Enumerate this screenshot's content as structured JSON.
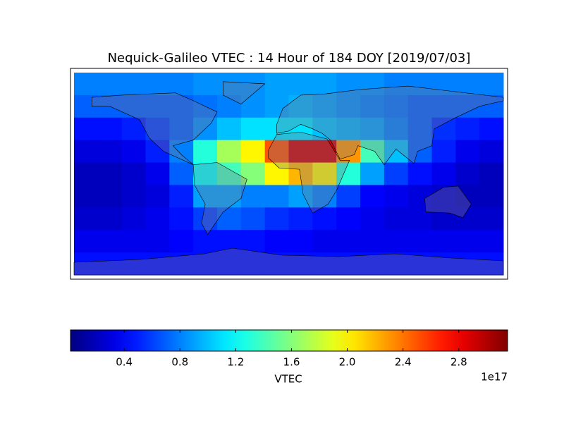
{
  "chart_data": {
    "type": "heatmap",
    "title": "Nequick-Galileo VTEC : 14 Hour of 184 DOY [2019/07/03]",
    "colormap": "jet",
    "clim": [
      0.015,
      3.15
    ],
    "colorbar_ticks": [
      0.4,
      0.8,
      1.2,
      1.6,
      {
        "value": 2,
        "label": "2.0"
      },
      2.4,
      2.8
    ],
    "colorbar_label": "VTEC",
    "colorbar_offset": "1e17",
    "values": [
      [
        0.8,
        0.8,
        0.8,
        0.8,
        0.8,
        0.85,
        0.85,
        0.85,
        0.9,
        0.9,
        0.9,
        0.85,
        0.85,
        0.8,
        0.8,
        0.8,
        0.8,
        0.8
      ],
      [
        0.7,
        0.7,
        0.7,
        0.7,
        0.7,
        0.75,
        0.8,
        0.85,
        0.9,
        0.95,
        0.9,
        0.85,
        0.8,
        0.75,
        0.7,
        0.7,
        0.7,
        0.7
      ],
      [
        0.45,
        0.45,
        0.5,
        0.6,
        0.7,
        0.85,
        1.0,
        1.1,
        1.1,
        1.1,
        1.0,
        0.95,
        0.9,
        0.8,
        0.7,
        0.55,
        0.5,
        0.45
      ],
      [
        0.3,
        0.3,
        0.35,
        0.5,
        0.8,
        1.3,
        1.7,
        2.0,
        2.5,
        2.9,
        2.9,
        2.3,
        1.4,
        1.0,
        0.7,
        0.5,
        0.35,
        0.3
      ],
      [
        0.2,
        0.2,
        0.25,
        0.35,
        0.7,
        1.2,
        1.4,
        1.6,
        2.0,
        2.2,
        2.0,
        1.3,
        0.9,
        0.6,
        0.45,
        0.35,
        0.25,
        0.2
      ],
      [
        0.2,
        0.2,
        0.25,
        0.3,
        0.5,
        0.9,
        0.9,
        0.8,
        0.8,
        0.9,
        0.8,
        0.6,
        0.4,
        0.35,
        0.3,
        0.25,
        0.2,
        0.2
      ],
      [
        0.25,
        0.25,
        0.3,
        0.35,
        0.45,
        0.6,
        0.7,
        0.65,
        0.55,
        0.5,
        0.45,
        0.4,
        0.35,
        0.3,
        0.3,
        0.25,
        0.25,
        0.25
      ],
      [
        0.35,
        0.35,
        0.35,
        0.35,
        0.4,
        0.45,
        0.45,
        0.45,
        0.4,
        0.4,
        0.35,
        0.35,
        0.35,
        0.35,
        0.35,
        0.35,
        0.35,
        0.35
      ],
      [
        0.45,
        0.45,
        0.45,
        0.45,
        0.45,
        0.45,
        0.45,
        0.45,
        0.45,
        0.45,
        0.45,
        0.45,
        0.45,
        0.45,
        0.45,
        0.45,
        0.45,
        0.45
      ]
    ]
  }
}
